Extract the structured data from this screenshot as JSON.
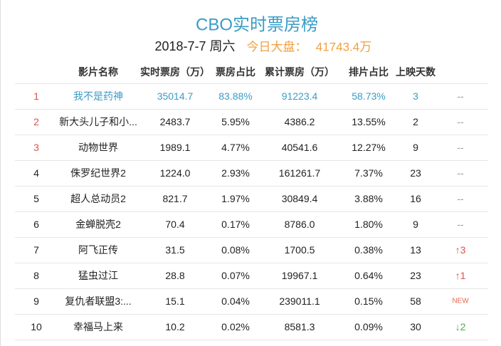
{
  "header": {
    "title": "CBO实时票房榜",
    "date": "2018-7-7 周六",
    "total_label": "今日大盘：",
    "total": "41743.4万"
  },
  "table": {
    "columns": [
      "影片名称",
      "实时票房（万）",
      "票房占比",
      "累计票房（万）",
      "排片占比",
      "上映天数"
    ],
    "rows": [
      {
        "rank": "1",
        "name": "我不是药神",
        "cells": [
          "35014.7",
          "83.88%",
          "91223.4",
          "58.73%",
          "3"
        ],
        "trend": "--",
        "highlight": true
      },
      {
        "rank": "2",
        "name": "新大头儿子和小...",
        "cells": [
          "2483.7",
          "5.95%",
          "4386.2",
          "13.55%",
          "2"
        ],
        "trend": "--"
      },
      {
        "rank": "3",
        "name": "动物世界",
        "cells": [
          "1989.1",
          "4.77%",
          "40541.6",
          "12.27%",
          "9"
        ],
        "trend": "--"
      },
      {
        "rank": "4",
        "name": "侏罗纪世界2",
        "cells": [
          "1224.0",
          "2.93%",
          "161261.7",
          "7.37%",
          "23"
        ],
        "trend": "--"
      },
      {
        "rank": "5",
        "name": "超人总动员2",
        "cells": [
          "821.7",
          "1.97%",
          "30849.4",
          "3.88%",
          "16"
        ],
        "trend": "--"
      },
      {
        "rank": "6",
        "name": "金蝉脱壳2",
        "cells": [
          "70.4",
          "0.17%",
          "8786.0",
          "1.80%",
          "9"
        ],
        "trend": "--"
      },
      {
        "rank": "7",
        "name": "阿飞正传",
        "cells": [
          "31.5",
          "0.08%",
          "1700.5",
          "0.38%",
          "13"
        ],
        "trend": "3",
        "arrow": "up"
      },
      {
        "rank": "8",
        "name": "猛虫过江",
        "cells": [
          "28.8",
          "0.07%",
          "19967.1",
          "0.64%",
          "23"
        ],
        "trend": "1",
        "arrow": "up"
      },
      {
        "rank": "9",
        "name": "复仇者联盟3:...",
        "cells": [
          "15.1",
          "0.04%",
          "239011.1",
          "0.15%",
          "58"
        ],
        "trend": "NEW",
        "arrow": "new"
      },
      {
        "rank": "10",
        "name": "幸福马上来",
        "cells": [
          "10.2",
          "0.02%",
          "8581.3",
          "0.09%",
          "30"
        ],
        "trend": "2",
        "arrow": "down"
      }
    ]
  }
}
